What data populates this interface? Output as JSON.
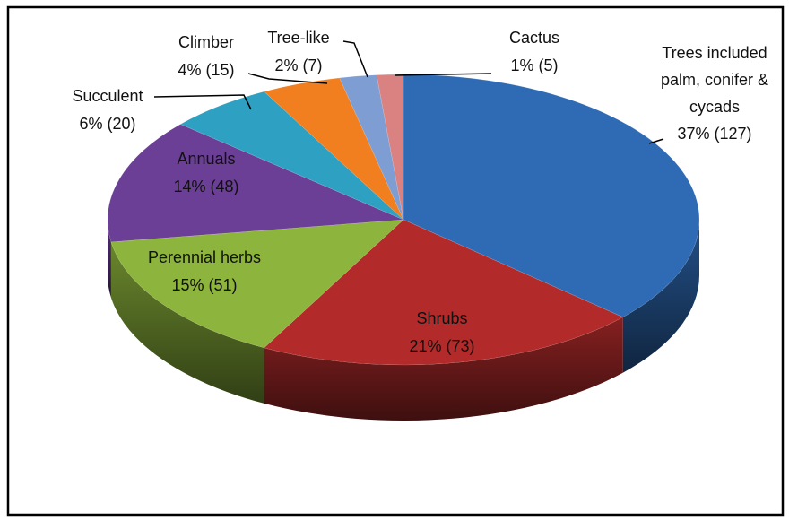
{
  "chart_data": {
    "type": "pie",
    "categories": [
      "Trees included palm, conifer & cycads",
      "Shrubs",
      "Perennial herbs",
      "Annuals",
      "Succulent",
      "Climber",
      "Tree-like",
      "Cactus"
    ],
    "values": [
      127,
      73,
      51,
      48,
      20,
      15,
      7,
      5
    ],
    "value_labels": [
      "37% (127)",
      "21% (73)",
      "15% (51)",
      "14% (48)",
      "6% (20)",
      "4% (15)",
      "2% (7)",
      "1% (5)"
    ],
    "colors": [
      "#2f6bb5",
      "#b22a2a",
      "#8db43c",
      "#6b3f96",
      "#2ea0c1",
      "#f17f1f",
      "#7e9dd2",
      "#da8282"
    ]
  }
}
